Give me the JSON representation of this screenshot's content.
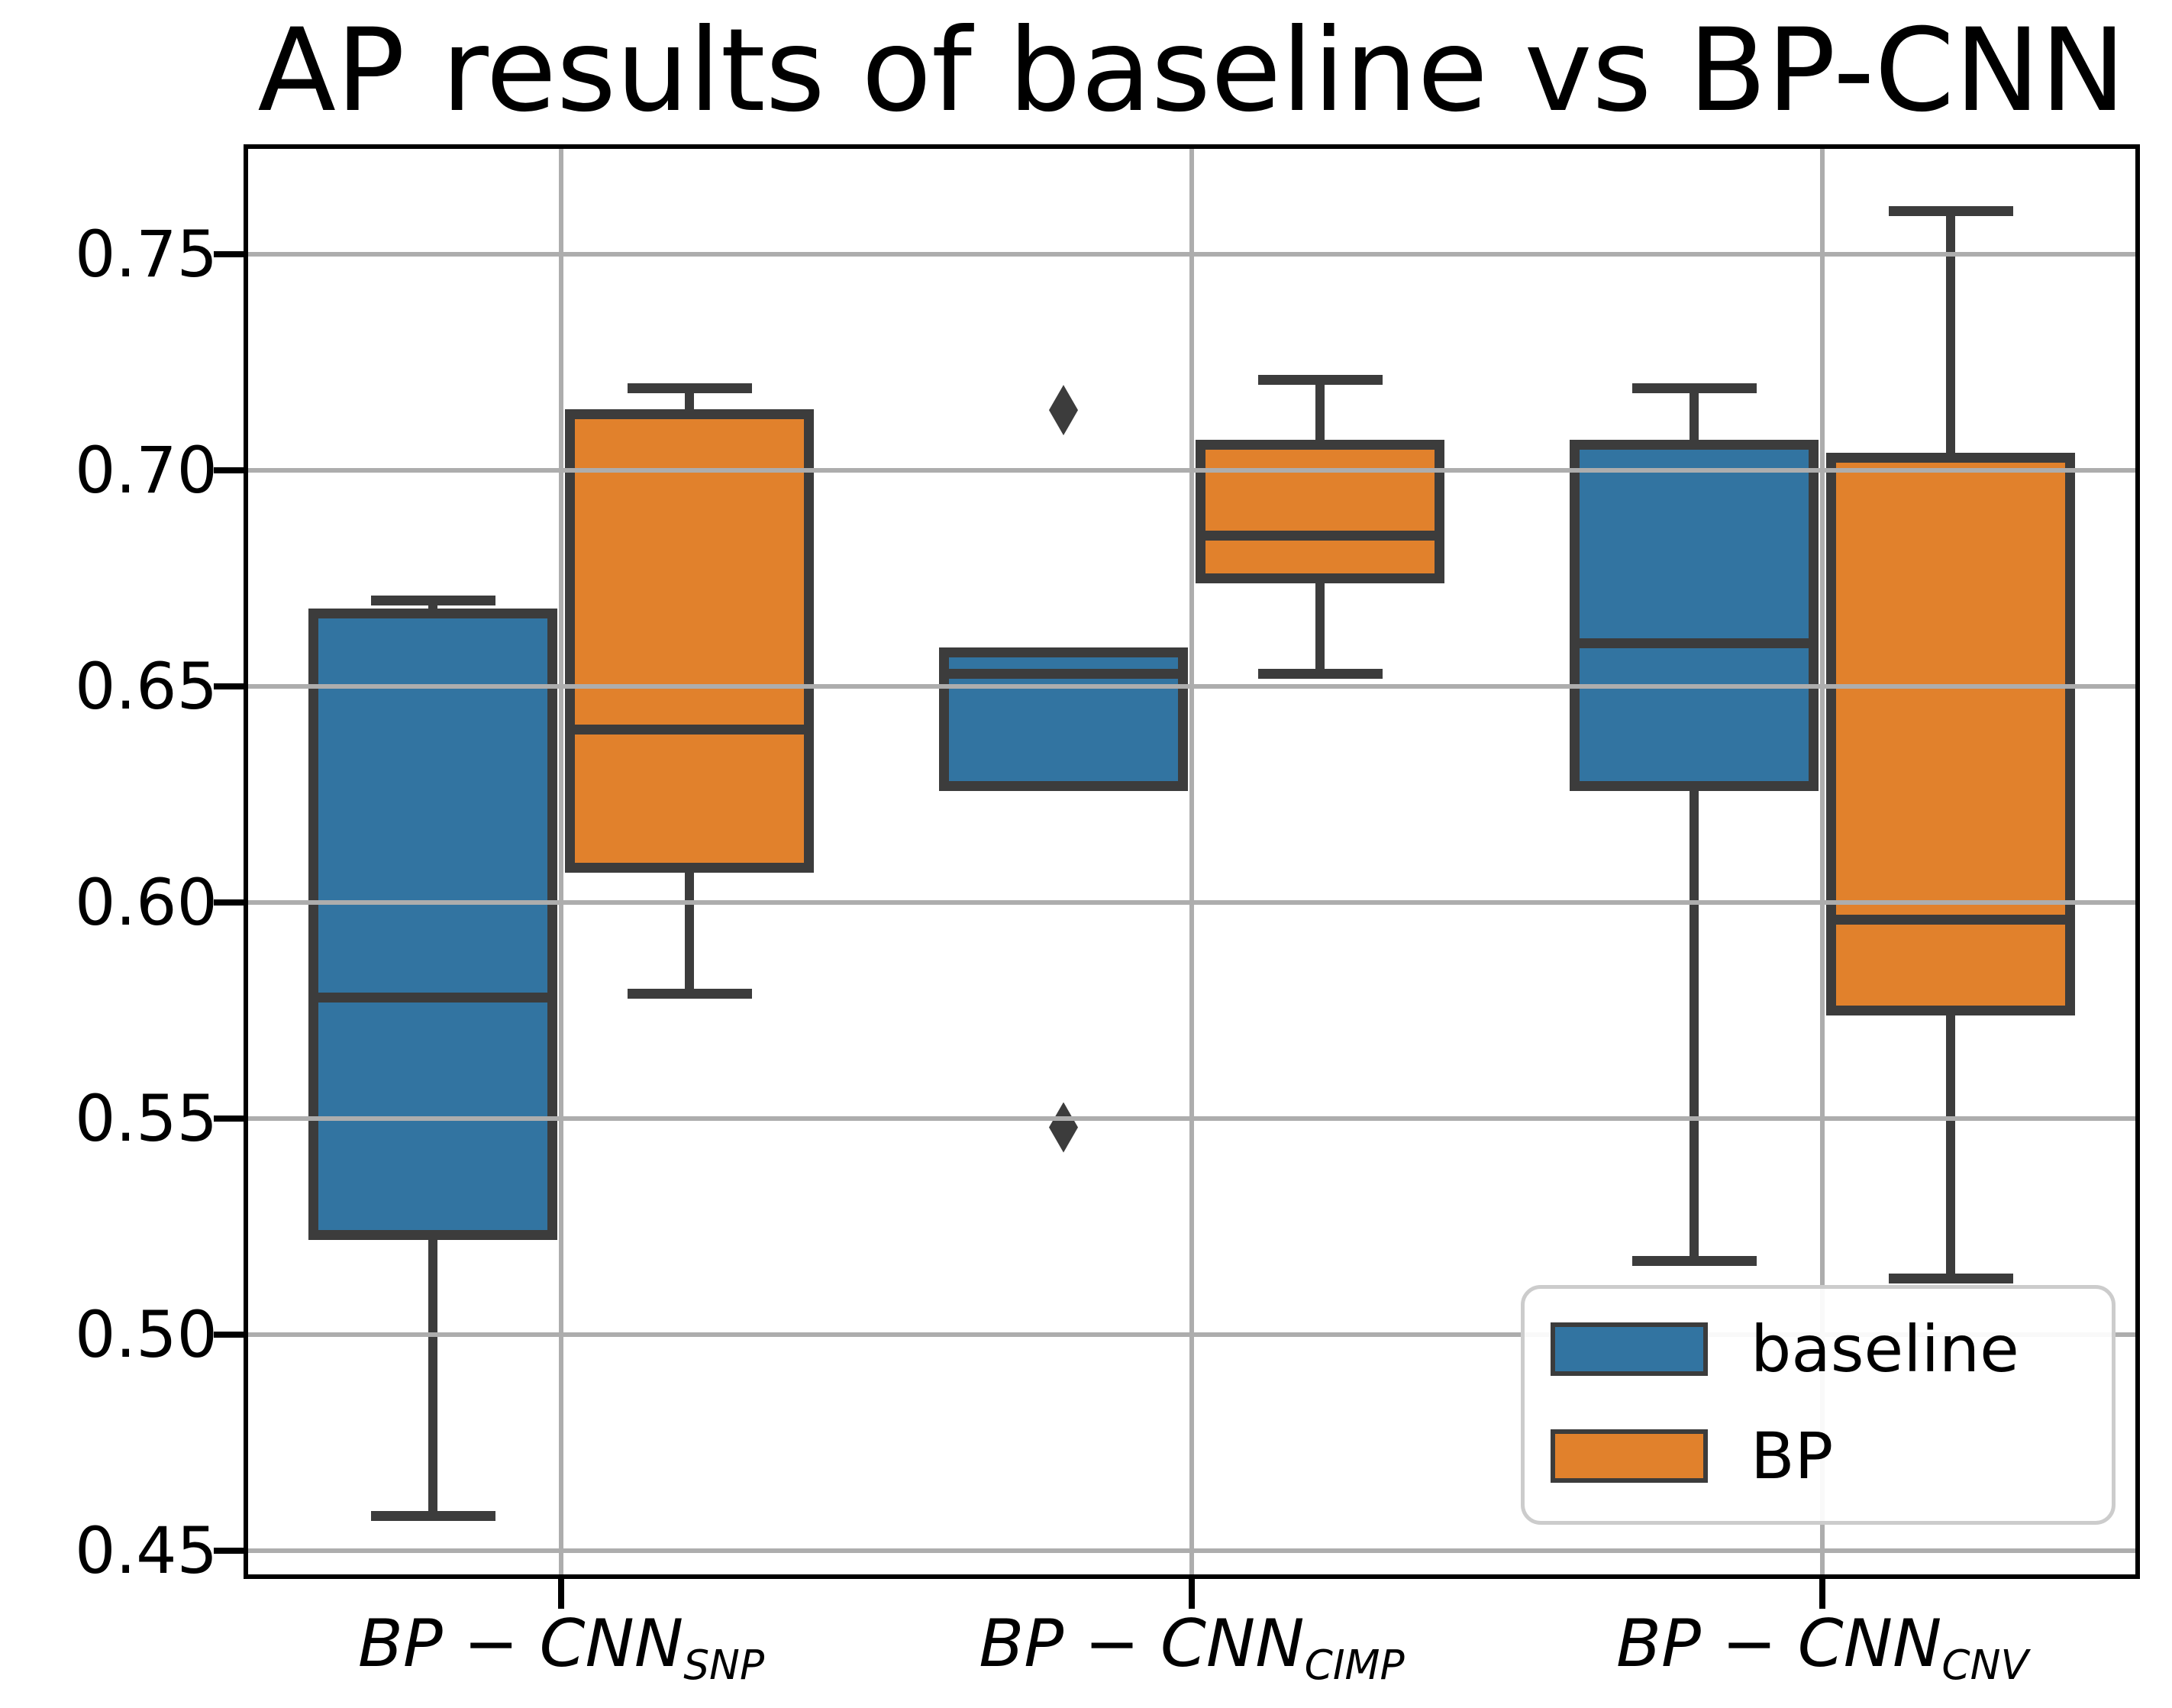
{
  "title": "AP results of baseline vs BP-CNN",
  "colors": {
    "baseline_fill": "#3274A1",
    "bp_fill": "#E1812C",
    "edge": "#3C3C3C",
    "grid": "#ADADAD",
    "spine": "#000000"
  },
  "y_axis": {
    "tick_labels": [
      "0.45",
      "0.50",
      "0.55",
      "0.60",
      "0.65",
      "0.70",
      "0.75"
    ],
    "tick_values": [
      0.45,
      0.5,
      0.55,
      0.6,
      0.65,
      0.7,
      0.75
    ],
    "lim": [
      0.444,
      0.775
    ]
  },
  "x_axis": {
    "categories": [
      {
        "main": "BP − CNN",
        "sub": "SNP"
      },
      {
        "main": "BP − CNN",
        "sub": "CIMP"
      },
      {
        "main": "BP − CNN",
        "sub": "CNV"
      }
    ]
  },
  "legend": {
    "items": [
      {
        "label": "baseline",
        "color_key": "baseline_fill"
      },
      {
        "label": "BP",
        "color_key": "bp_fill"
      }
    ]
  },
  "chart_data": {
    "type": "boxplot",
    "title": "AP results of baseline vs BP-CNN",
    "xlabel": "",
    "ylabel": "",
    "ylim": [
      0.444,
      0.775
    ],
    "grid": true,
    "legend_position": "lower right",
    "categories": [
      "BP-CNN_SNP",
      "BP-CNN_CIMP",
      "BP-CNN_CNV"
    ],
    "series": [
      {
        "name": "baseline",
        "color": "#3274A1",
        "boxes": [
          {
            "whislo": 0.458,
            "q1": 0.523,
            "med": 0.578,
            "q3": 0.667,
            "whishi": 0.67,
            "fliers": []
          },
          {
            "whislo": 0.627,
            "q1": 0.627,
            "med": 0.653,
            "q3": 0.658,
            "whishi": 0.658,
            "fliers": [
              0.714,
              0.548
            ]
          },
          {
            "whislo": 0.517,
            "q1": 0.627,
            "med": 0.66,
            "q3": 0.706,
            "whishi": 0.719,
            "fliers": []
          }
        ]
      },
      {
        "name": "BP",
        "color": "#E1812C",
        "boxes": [
          {
            "whislo": 0.579,
            "q1": 0.608,
            "med": 0.64,
            "q3": 0.713,
            "whishi": 0.719,
            "fliers": []
          },
          {
            "whislo": 0.653,
            "q1": 0.675,
            "med": 0.685,
            "q3": 0.706,
            "whishi": 0.721,
            "fliers": []
          },
          {
            "whislo": 0.513,
            "q1": 0.575,
            "med": 0.596,
            "q3": 0.703,
            "whishi": 0.76,
            "fliers": []
          }
        ]
      }
    ]
  }
}
